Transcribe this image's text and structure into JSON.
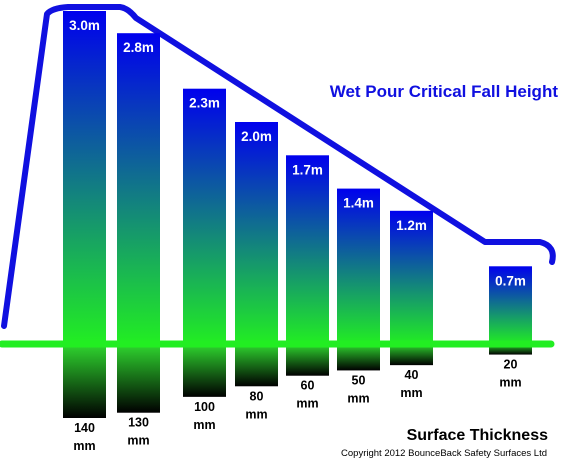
{
  "chart_data": {
    "type": "bar",
    "title": "Wet Pour Critical Fall Height",
    "subtitle": "Surface Thickness",
    "footer": "Copyright 2012 BounceBack Safety Surfaces Ltd",
    "series": [
      {
        "values": [
          3.0,
          2.8,
          2.3,
          2.0,
          1.7,
          1.4,
          1.2,
          0.7
        ],
        "value_labels": [
          "3.0m",
          "2.8m",
          "2.3m",
          "2.0m",
          "1.7m",
          "1.4m",
          "1.2m",
          "0.7m"
        ]
      },
      {
        "values": [
          140,
          130,
          100,
          80,
          60,
          50,
          40,
          20
        ],
        "labels_line1": [
          "140",
          "130",
          "100",
          "80",
          "60",
          "50",
          "40",
          "20"
        ],
        "labels_line2": [
          "mm",
          "mm",
          "mm",
          "mm",
          "mm",
          "mm",
          "mm",
          "mm"
        ]
      }
    ],
    "colors": {
      "bar_top": "#0000ee",
      "bar_bottom": "#22ee22",
      "thickness_top": "#2fd62f",
      "thickness_bottom": "#000000",
      "baseline": "#22ee22",
      "outline": "#1010e0"
    }
  }
}
